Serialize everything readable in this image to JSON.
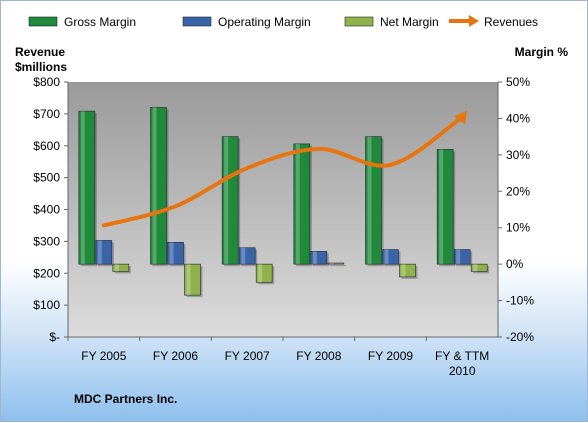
{
  "chart_data": {
    "type": "bar",
    "title": "",
    "company": "MDC Partners Inc.",
    "categories": [
      "FY 2005",
      "FY 2006",
      "FY 2007",
      "FY 2008",
      "FY 2009",
      "FY & TTM 2010"
    ],
    "ylabel_left": "Revenue $millions",
    "ylabel_right": "Margin %",
    "y_left_ticks": [
      "$-",
      "$100",
      "$200",
      "$300",
      "$400",
      "$500",
      "$600",
      "$700",
      "$800"
    ],
    "y_left_lim": [
      0,
      800
    ],
    "y_right_ticks": [
      "-20%",
      "-10%",
      "0%",
      "10%",
      "20%",
      "30%",
      "40%",
      "50%"
    ],
    "y_right_lim": [
      -20,
      50
    ],
    "series": [
      {
        "name": "Gross Margin",
        "axis": "right",
        "kind": "bar",
        "color": "#1e8a3a",
        "values": [
          42,
          43,
          35,
          33,
          35,
          31.5
        ]
      },
      {
        "name": "Operating Margin",
        "axis": "right",
        "kind": "bar",
        "color": "#3a64a8",
        "values": [
          6.5,
          6,
          4.5,
          3.5,
          4,
          4
        ]
      },
      {
        "name": "Net Margin",
        "axis": "right",
        "kind": "bar",
        "color": "#8fb34a",
        "values": [
          -2,
          -8.5,
          -5,
          0.3,
          -3.5,
          -2
        ]
      },
      {
        "name": "Revenues",
        "axis": "left",
        "kind": "line",
        "color": "#e8740f",
        "values": [
          350,
          410,
          530,
          590,
          540,
          690
        ]
      }
    ],
    "legend_position": "top",
    "grid": false
  }
}
